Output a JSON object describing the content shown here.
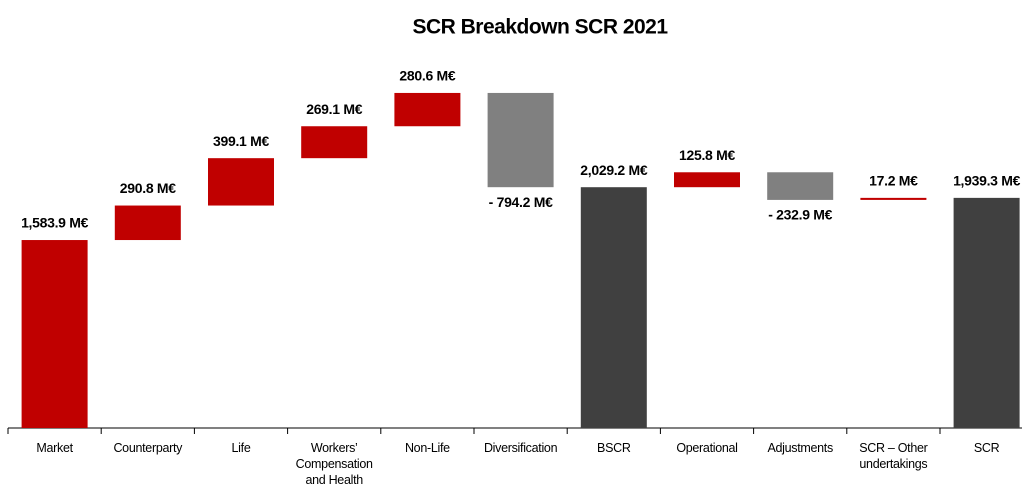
{
  "chart_data": {
    "type": "waterfall",
    "title": "SCR Breakdown SCR 2021",
    "categories": [
      "Market",
      "Counterparty",
      "Life",
      "Workers’ Compensation and Health",
      "Non-Life",
      "Diversification",
      "BSCR",
      "Operational",
      "Adjustments",
      "SCR – Other undertakings",
      "SCR"
    ],
    "values": [
      1583.9,
      290.8,
      399.1,
      269.1,
      280.6,
      -794.2,
      2029.2,
      125.8,
      -232.9,
      17.2,
      1939.3
    ],
    "value_labels": [
      "1,583.9 M€",
      "290.8 M€",
      "399.1 M€",
      "269.1 M€",
      "280.6 M€",
      "- 794.2 M€",
      "2,029.2 M€",
      "125.8 M€",
      "- 232.9 M€",
      "17.2 M€",
      "1,939.3 M€"
    ],
    "measures": [
      "relative",
      "relative",
      "relative",
      "relative",
      "relative",
      "relative",
      "total",
      "relative",
      "relative",
      "relative",
      "total"
    ],
    "colors": {
      "increase": "#c00000",
      "decrease": "#808080",
      "total": "#404040"
    },
    "ylim": [
      0,
      3000
    ]
  }
}
